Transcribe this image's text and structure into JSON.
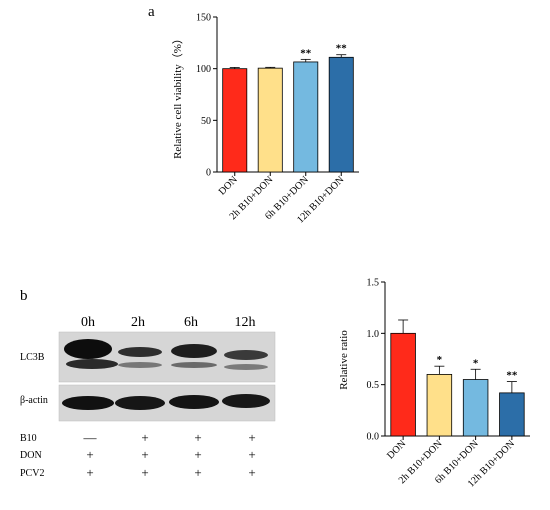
{
  "panel_a_label": "a",
  "panel_b_label": "b",
  "colors": {
    "red": "#ff2a1a",
    "yellow": "#ffe08a",
    "lightblue": "#74b9e0",
    "darkblue": "#2c6ea8"
  },
  "chart_data": [
    {
      "type": "bar",
      "panel": "a",
      "ylabel": "Relative cell viability（%）",
      "ylim": [
        0,
        150
      ],
      "yticks": [
        0,
        50,
        100,
        150
      ],
      "categories": [
        "DON",
        "2h B10+DON",
        "6h B10+DON",
        "12h B10+DON"
      ],
      "values": [
        100,
        100.5,
        106.5,
        111
      ],
      "errors": [
        1.2,
        0.8,
        2.5,
        2.5
      ],
      "significance": [
        "",
        "",
        "**",
        "**"
      ],
      "bar_colors": [
        "#ff2a1a",
        "#ffe08a",
        "#74b9e0",
        "#2c6ea8"
      ]
    },
    {
      "type": "bar",
      "panel": "b",
      "ylabel": "Relative ratio",
      "ylim": [
        0,
        1.5
      ],
      "yticks": [
        "0.0",
        "0.5",
        "1.0",
        "1.5"
      ],
      "categories": [
        "DON",
        "2h B10+DON",
        "6h B10+DON",
        "12h B10+DON"
      ],
      "values": [
        1.0,
        0.6,
        0.55,
        0.42
      ],
      "errors": [
        0.13,
        0.08,
        0.1,
        0.11
      ],
      "significance": [
        "",
        "*",
        "*",
        "**"
      ],
      "bar_colors": [
        "#ff2a1a",
        "#ffe08a",
        "#74b9e0",
        "#2c6ea8"
      ]
    }
  ],
  "blot": {
    "lanes": [
      "0h",
      "2h",
      "6h",
      "12h"
    ],
    "rows": [
      "LC3B",
      "β-actin"
    ],
    "treatments": [
      {
        "name": "B10",
        "marks": [
          "—",
          "+",
          "+",
          "+"
        ]
      },
      {
        "name": "DON",
        "marks": [
          "+",
          "+",
          "+",
          "+"
        ]
      },
      {
        "name": "PCV2",
        "marks": [
          "+",
          "+",
          "+",
          "+"
        ]
      }
    ]
  }
}
